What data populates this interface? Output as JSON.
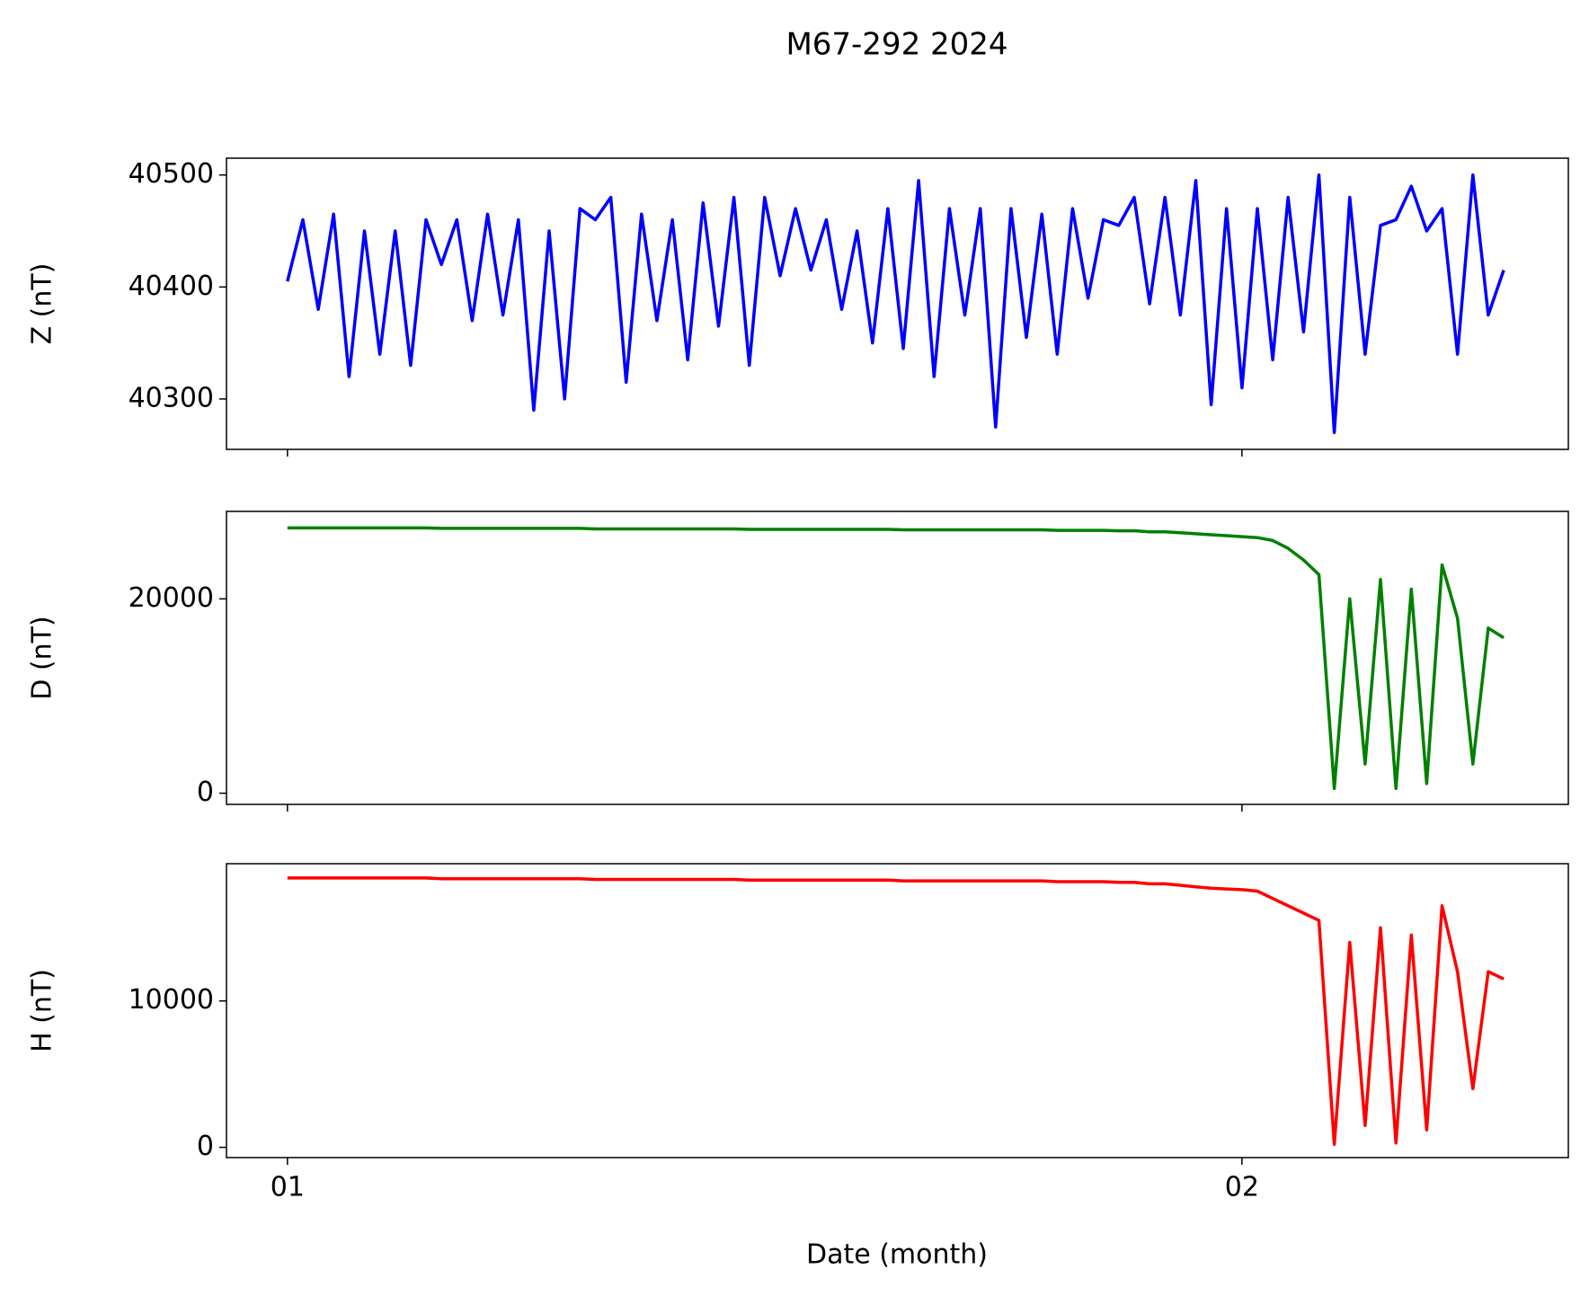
{
  "chart_data": {
    "type": "line",
    "title": "M67-292 2024",
    "xlabel": "Date (month)",
    "xlim": [
      -1.98,
      41.6
    ],
    "xticks": [
      {
        "value": 0,
        "label": "01"
      },
      {
        "value": 31,
        "label": "02"
      }
    ],
    "x": [
      0,
      0.5,
      1,
      1.5,
      2,
      2.5,
      3,
      3.5,
      4,
      4.5,
      5,
      5.5,
      6,
      6.5,
      7,
      7.5,
      8,
      8.5,
      9,
      9.5,
      10,
      10.5,
      11,
      11.5,
      12,
      12.5,
      13,
      13.5,
      14,
      14.5,
      15,
      15.5,
      16,
      16.5,
      17,
      17.5,
      18,
      18.5,
      19,
      19.5,
      20,
      20.5,
      21,
      21.5,
      22,
      22.5,
      23,
      23.5,
      24,
      24.5,
      25,
      25.5,
      26,
      26.5,
      27,
      27.5,
      28,
      28.5,
      29,
      29.5,
      30,
      30.5,
      31,
      31.5,
      32,
      32.5,
      33,
      33.5,
      34,
      34.5,
      35,
      35.5,
      36,
      36.5,
      37,
      37.5,
      38,
      38.5,
      39,
      39.5
    ],
    "series": [
      {
        "ylabel": "Z (nT)",
        "color": "#0000ff",
        "ylim": [
          40255,
          40515
        ],
        "yticks": [
          40300,
          40400,
          40500
        ],
        "values": [
          40405,
          40460,
          40380,
          40465,
          40320,
          40450,
          40340,
          40450,
          40330,
          40460,
          40420,
          40460,
          40370,
          40465,
          40375,
          40460,
          40290,
          40450,
          40300,
          40470,
          40460,
          40480,
          40315,
          40465,
          40370,
          40460,
          40335,
          40475,
          40365,
          40480,
          40330,
          40480,
          40410,
          40470,
          40415,
          40460,
          40380,
          40450,
          40350,
          40470,
          40345,
          40495,
          40320,
          40470,
          40375,
          40470,
          40275,
          40470,
          40355,
          40465,
          40340,
          40470,
          40390,
          40460,
          40455,
          40480,
          40385,
          40480,
          40375,
          40495,
          40295,
          40470,
          40310,
          40470,
          40335,
          40480,
          40360,
          40500,
          40270,
          40480,
          40340,
          40455,
          40460,
          40490,
          40450,
          40470,
          40340,
          40500,
          40375,
          40415
        ]
      },
      {
        "ylabel": "D (nT)",
        "color": "#008000",
        "ylim": [
          -1150,
          29000
        ],
        "yticks": [
          0,
          20000
        ],
        "values": [
          27300,
          27300,
          27300,
          27300,
          27300,
          27300,
          27300,
          27300,
          27300,
          27300,
          27250,
          27250,
          27250,
          27250,
          27250,
          27250,
          27250,
          27250,
          27250,
          27250,
          27200,
          27200,
          27200,
          27200,
          27200,
          27200,
          27200,
          27200,
          27200,
          27200,
          27150,
          27150,
          27150,
          27150,
          27150,
          27150,
          27150,
          27150,
          27150,
          27150,
          27100,
          27100,
          27100,
          27100,
          27100,
          27100,
          27100,
          27100,
          27100,
          27100,
          27050,
          27050,
          27050,
          27050,
          27000,
          27000,
          26900,
          26900,
          26800,
          26700,
          26600,
          26500,
          26400,
          26300,
          26000,
          25200,
          24000,
          22500,
          500,
          20000,
          3000,
          22000,
          500,
          21000,
          1000,
          23500,
          18000,
          3000,
          17000,
          16000
        ]
      },
      {
        "ylabel": "H (nT)",
        "color": "#ff0000",
        "ylim": [
          -700,
          19375
        ],
        "yticks": [
          0,
          10000
        ],
        "values": [
          18400,
          18400,
          18400,
          18400,
          18400,
          18400,
          18400,
          18400,
          18400,
          18400,
          18350,
          18350,
          18350,
          18350,
          18350,
          18350,
          18350,
          18350,
          18350,
          18350,
          18300,
          18300,
          18300,
          18300,
          18300,
          18300,
          18300,
          18300,
          18300,
          18300,
          18250,
          18250,
          18250,
          18250,
          18250,
          18250,
          18250,
          18250,
          18250,
          18250,
          18200,
          18200,
          18200,
          18200,
          18200,
          18200,
          18200,
          18200,
          18200,
          18200,
          18150,
          18150,
          18150,
          18150,
          18100,
          18100,
          18000,
          18000,
          17900,
          17800,
          17700,
          17650,
          17600,
          17500,
          17000,
          16500,
          16000,
          15500,
          200,
          14000,
          1500,
          15000,
          300,
          14500,
          1200,
          16500,
          12000,
          4000,
          12000,
          11500
        ]
      }
    ]
  }
}
